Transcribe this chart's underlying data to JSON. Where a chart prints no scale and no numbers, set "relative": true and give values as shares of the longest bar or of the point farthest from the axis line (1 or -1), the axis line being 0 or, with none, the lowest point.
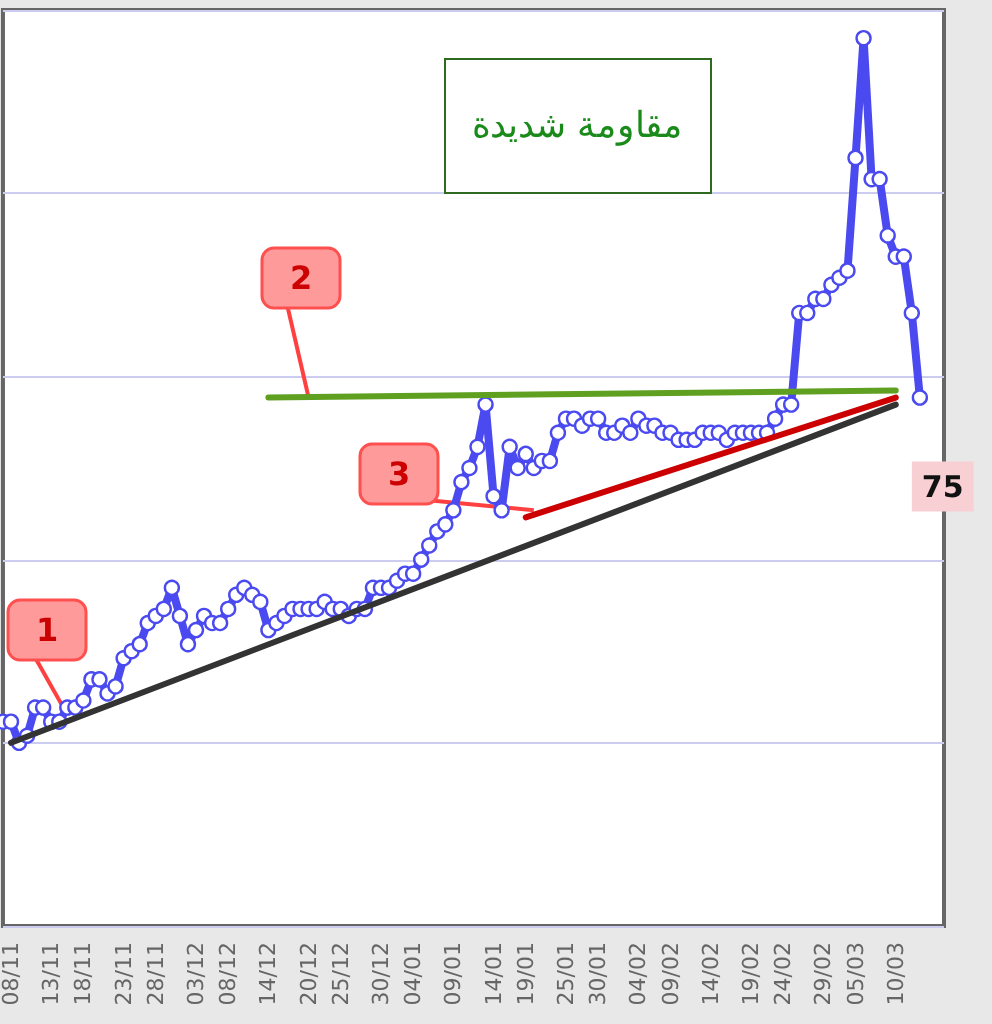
{
  "chart_data": {
    "type": "line",
    "relative": true,
    "grid": "y",
    "marker": "circle",
    "line_style": "solid",
    "tick_labels": "x",
    "categories": [
      null,
      "08/11",
      null,
      null,
      null,
      null,
      "13/11",
      null,
      null,
      null,
      "18/11",
      null,
      null,
      null,
      null,
      "23/11",
      null,
      null,
      null,
      "28/11",
      null,
      null,
      null,
      null,
      "03/12",
      null,
      null,
      null,
      "08/12",
      null,
      null,
      null,
      null,
      "14/12",
      null,
      null,
      null,
      null,
      "20/12",
      null,
      null,
      null,
      "25/12",
      null,
      null,
      null,
      null,
      "30/12",
      null,
      null,
      null,
      "04/01",
      null,
      null,
      null,
      null,
      "09/01",
      null,
      null,
      null,
      null,
      "14/01",
      null,
      null,
      null,
      "19/01",
      null,
      null,
      null,
      null,
      "25/01",
      null,
      null,
      null,
      "30/01",
      null,
      null,
      null,
      null,
      "04/02",
      null,
      null,
      null,
      "09/02",
      null,
      null,
      null,
      null,
      "14/02",
      null,
      null,
      null,
      null,
      "19/02",
      null,
      null,
      null,
      "24/02",
      null,
      null,
      null,
      null,
      "29/02",
      null,
      null,
      null,
      "05/03",
      null,
      null,
      null,
      null,
      "10/03",
      null,
      null,
      null
    ],
    "series": [
      {
        "color": "#4a4af0",
        "values": [
          0.03,
          0.03,
          0,
          0.01,
          0.05,
          0.05,
          0.03,
          0.03,
          0.05,
          0.05,
          0.06,
          0.09,
          0.09,
          0.07,
          0.08,
          0.12,
          0.13,
          0.14,
          0.17,
          0.18,
          0.19,
          0.22,
          0.18,
          0.14,
          0.16,
          0.18,
          0.17,
          0.17,
          0.19,
          0.21,
          0.22,
          0.21,
          0.2,
          0.16,
          0.17,
          0.18,
          0.19,
          0.19,
          0.19,
          0.19,
          0.2,
          0.19,
          0.19,
          0.18,
          0.19,
          0.19,
          0.22,
          0.22,
          0.22,
          0.23,
          0.24,
          0.24,
          0.26,
          0.28,
          0.3,
          0.31,
          0.33,
          0.37,
          0.39,
          0.42,
          0.48,
          0.35,
          0.33,
          0.42,
          0.39,
          0.41,
          0.39,
          0.4,
          0.4,
          0.44,
          0.46,
          0.46,
          0.45,
          0.46,
          0.46,
          0.44,
          0.44,
          0.45,
          0.44,
          0.46,
          0.45,
          0.45,
          0.44,
          0.44,
          0.43,
          0.43,
          0.43,
          0.44,
          0.44,
          0.44,
          0.43,
          0.44,
          0.44,
          0.44,
          0.44,
          0.44,
          0.46,
          0.48,
          0.48,
          0.61,
          0.61,
          0.63,
          0.63,
          0.65,
          0.66,
          0.67,
          0.83,
          1,
          0.8,
          0.8,
          0.72,
          0.69,
          0.69,
          0.61,
          0.49
        ]
      },
      {
        "type": "line",
        "marker": "none",
        "color": "#333333",
        "x": [
          "08/11",
          "10/03"
        ],
        "values": [
          0,
          0.48
        ]
      },
      {
        "type": "line",
        "marker": "none",
        "color": "#5fa020",
        "x": [
          "14/12",
          "10/03"
        ],
        "values": [
          0.49,
          0.5
        ]
      },
      {
        "type": "line",
        "marker": "none",
        "color": "#cc0000",
        "x": [
          "19/01",
          "10/03"
        ],
        "values": [
          0.32,
          0.49
        ]
      }
    ],
    "annotations": [
      "1",
      "2",
      "3",
      "مقاومة شديدة",
      "75"
    ]
  }
}
